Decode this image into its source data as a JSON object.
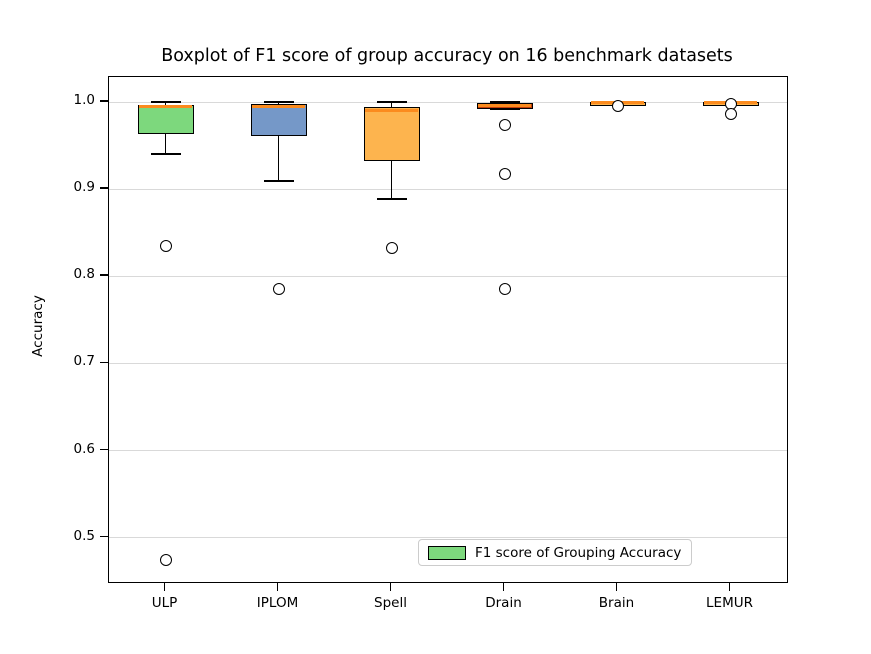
{
  "title": "Boxplot of F1 score of group accuracy on 16 benchmark datasets",
  "ylabel": "Accuracy",
  "legend": {
    "label": "F1 score of Grouping Accuracy",
    "swatch_color": "#7dd87d",
    "position": "lower right"
  },
  "colors": {
    "median_line": "#fb8b1e",
    "grid_line": "#d9d9d9",
    "spine": "#000000",
    "outlier_fill": "#ffffff",
    "background": "#ffffff"
  },
  "chart_data": {
    "type": "boxplot",
    "title": "Boxplot of F1 score of group accuracy on 16 benchmark datasets",
    "xlabel": "",
    "ylabel": "Accuracy",
    "categories": [
      "ULP",
      "IPLOM",
      "Spell",
      "Drain",
      "Brain",
      "LEMUR"
    ],
    "ylim": [
      0.449,
      1.029
    ],
    "yticks": [
      0.5,
      0.6,
      0.7,
      0.8,
      0.9,
      1.0
    ],
    "grid": true,
    "legend_position": "lower right",
    "series": [
      {
        "name": "ULP",
        "color": "#7dd87d",
        "whisker_low": 0.941,
        "q1": 0.964,
        "median": 0.995,
        "q3": 0.997,
        "whisker_high": 1.0,
        "outliers": [
          0.835,
          0.474
        ]
      },
      {
        "name": "IPLOM",
        "color": "#7598c8",
        "whisker_low": 0.91,
        "q1": 0.961,
        "median": 0.995,
        "q3": 0.998,
        "whisker_high": 1.0,
        "outliers": [
          0.786
        ]
      },
      {
        "name": "Spell",
        "color": "#fdb44e",
        "whisker_low": 0.889,
        "q1": 0.933,
        "median": 0.991,
        "q3": 0.995,
        "whisker_high": 1.0,
        "outliers": [
          0.833
        ]
      },
      {
        "name": "Drain",
        "color": "#c23d0c",
        "whisker_low": 0.992,
        "q1": 0.9925,
        "median": 0.996,
        "q3": 0.999,
        "whisker_high": 1.0,
        "outliers": [
          0.974,
          0.918,
          0.785
        ]
      },
      {
        "name": "Brain",
        "color": "#fdb44e",
        "whisker_low": 0.997,
        "q1": 0.9975,
        "median": 0.9995,
        "q3": 1.0,
        "whisker_high": 1.0,
        "outliers": [
          0.996
        ]
      },
      {
        "name": "LEMUR",
        "color": "#fdb44e",
        "whisker_low": 0.998,
        "q1": 0.998,
        "median": 0.9995,
        "q3": 1.0,
        "whisker_high": 1.0,
        "outliers": [
          0.998,
          0.986
        ]
      }
    ]
  }
}
